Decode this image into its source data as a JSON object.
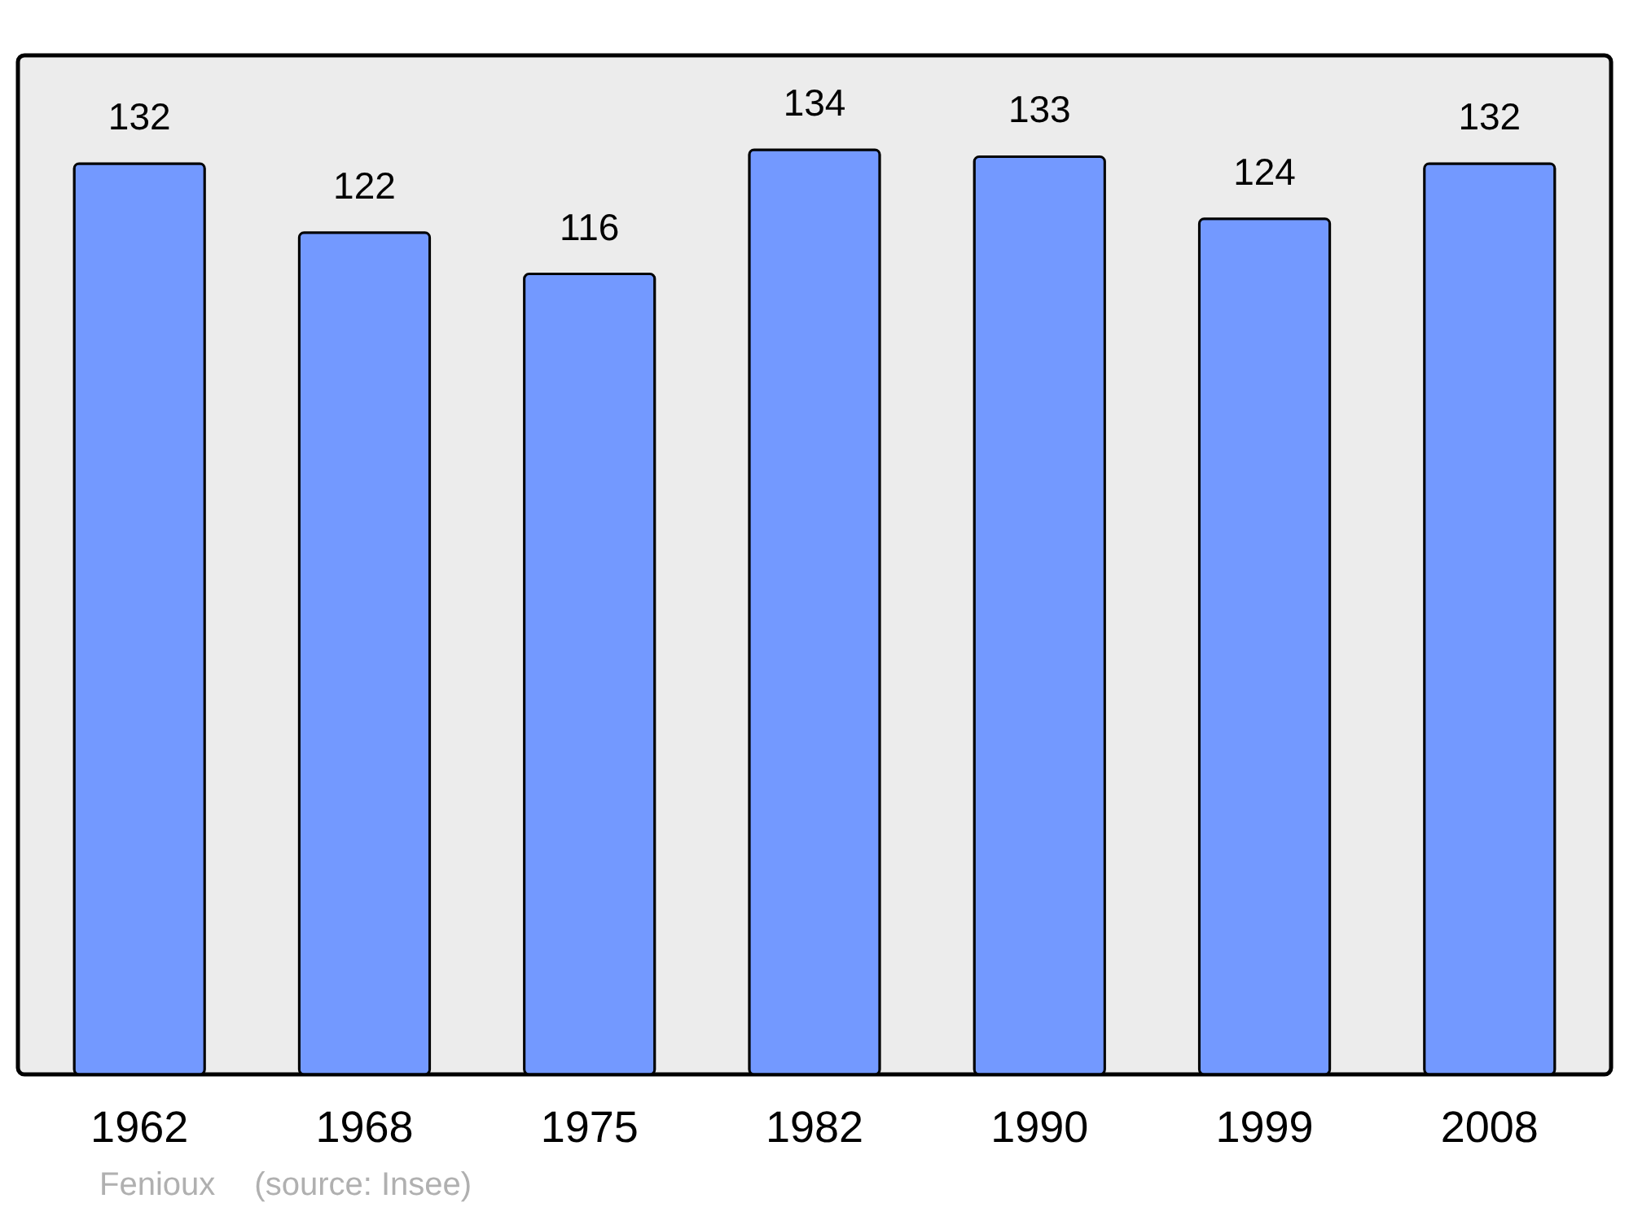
{
  "chart_data": {
    "type": "bar",
    "categories": [
      "1962",
      "1968",
      "1975",
      "1982",
      "1990",
      "1999",
      "2008"
    ],
    "values": [
      132,
      122,
      116,
      134,
      133,
      124,
      132
    ],
    "color": "#7399ff",
    "data_labels": true,
    "tick_labels": "x",
    "annotations": [
      "Fenioux",
      "(source: Insee)"
    ]
  }
}
